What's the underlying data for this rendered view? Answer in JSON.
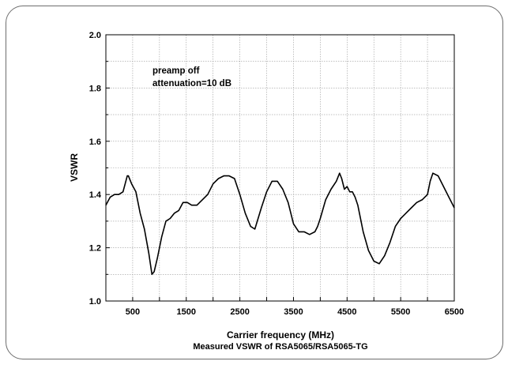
{
  "chart_data": {
    "type": "line",
    "title": "",
    "caption": "Measured VSWR of RSA5065/RSA5065-TG",
    "xlabel": "Carrier frequency (MHz)",
    "ylabel": "VSWR",
    "xlim": [
      0,
      6500
    ],
    "ylim": [
      1.0,
      2.0
    ],
    "xticks": [
      "500",
      "1500",
      "2500",
      "3500",
      "4500",
      "5500",
      "6500"
    ],
    "yticks": [
      "1.0",
      "1.2",
      "1.4",
      "1.6",
      "1.8",
      "2.0"
    ],
    "grid": true,
    "annotations": [
      "preamp off",
      "attenuation=10 dB"
    ],
    "series": [
      {
        "color": "#000000",
        "x": [
          0,
          80,
          160,
          240,
          320,
          400,
          420,
          480,
          560,
          640,
          720,
          800,
          860,
          900,
          960,
          1040,
          1120,
          1200,
          1280,
          1360,
          1440,
          1520,
          1600,
          1700,
          1800,
          1900,
          2000,
          2100,
          2200,
          2300,
          2400,
          2500,
          2600,
          2700,
          2780,
          2840,
          2900,
          3000,
          3100,
          3200,
          3300,
          3400,
          3500,
          3600,
          3700,
          3800,
          3900,
          3950,
          4000,
          4100,
          4200,
          4300,
          4360,
          4400,
          4450,
          4500,
          4550,
          4600,
          4650,
          4700,
          4800,
          4900,
          5000,
          5100,
          5200,
          5300,
          5400,
          5500,
          5600,
          5700,
          5800,
          5900,
          6000,
          6050,
          6100,
          6200,
          6300,
          6400,
          6500
        ],
        "y": [
          1.36,
          1.39,
          1.4,
          1.4,
          1.41,
          1.47,
          1.47,
          1.44,
          1.41,
          1.33,
          1.27,
          1.18,
          1.1,
          1.11,
          1.16,
          1.24,
          1.3,
          1.31,
          1.33,
          1.34,
          1.37,
          1.37,
          1.36,
          1.36,
          1.38,
          1.4,
          1.44,
          1.46,
          1.47,
          1.47,
          1.46,
          1.4,
          1.33,
          1.28,
          1.27,
          1.31,
          1.35,
          1.41,
          1.45,
          1.45,
          1.42,
          1.37,
          1.29,
          1.26,
          1.26,
          1.25,
          1.26,
          1.28,
          1.31,
          1.38,
          1.42,
          1.45,
          1.48,
          1.46,
          1.42,
          1.43,
          1.41,
          1.41,
          1.39,
          1.36,
          1.26,
          1.19,
          1.15,
          1.14,
          1.17,
          1.22,
          1.28,
          1.31,
          1.33,
          1.35,
          1.37,
          1.38,
          1.4,
          1.45,
          1.48,
          1.47,
          1.43,
          1.39,
          1.35
        ]
      }
    ]
  }
}
